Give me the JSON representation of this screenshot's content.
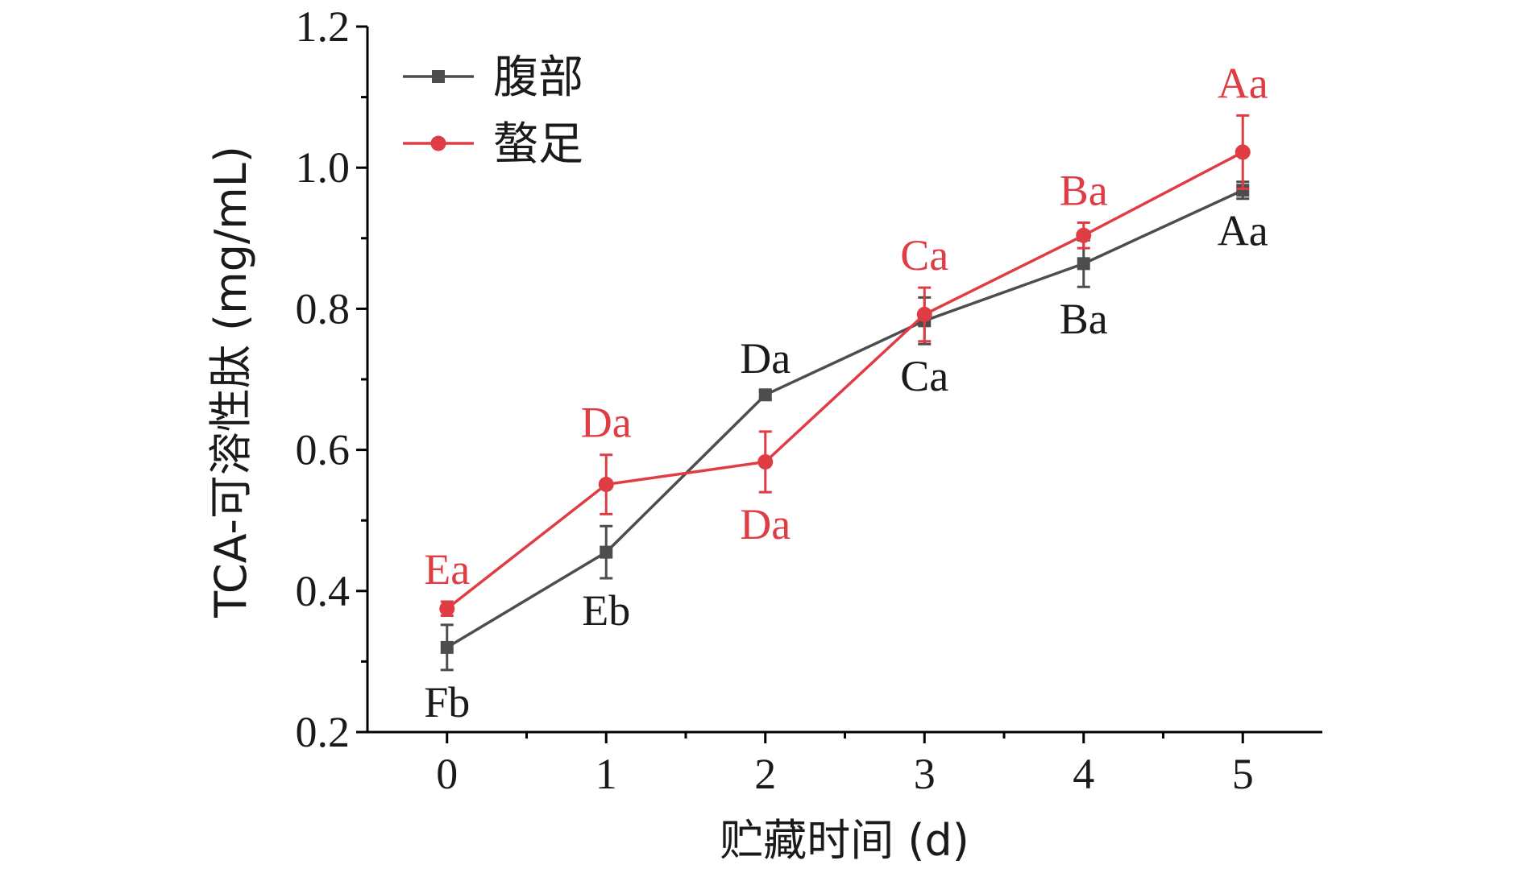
{
  "chart_data": {
    "type": "line",
    "xlabel": "贮藏时间 (d)",
    "ylabel": "TCA-可溶性肽 (mg/mL)",
    "x": [
      0,
      1,
      2,
      3,
      4,
      5
    ],
    "xlim": [
      -0.5,
      5.5
    ],
    "ylim": [
      0.2,
      1.2
    ],
    "x_ticks": [
      "0",
      "1",
      "2",
      "3",
      "4",
      "5"
    ],
    "y_ticks": [
      "0.2",
      "0.4",
      "0.6",
      "0.8",
      "1.0",
      "1.2"
    ],
    "grid": false,
    "legend_position": "top-left",
    "series": [
      {
        "name": "腹部",
        "color": "#4d4d4d",
        "marker": "square",
        "values": [
          0.32,
          0.455,
          0.678,
          0.783,
          0.864,
          0.968
        ],
        "errors": [
          0.032,
          0.037,
          0.006,
          0.033,
          0.033,
          0.012
        ],
        "labels": [
          "Fb",
          "Eb",
          "Da",
          "Ca",
          "Ba",
          "Aa"
        ],
        "label_positions": [
          "below",
          "below",
          "above",
          "below",
          "below",
          "below"
        ]
      },
      {
        "name": "螯足",
        "color": "#e03c44",
        "marker": "circle",
        "values": [
          0.375,
          0.551,
          0.583,
          0.792,
          0.904,
          1.022
        ],
        "errors": [
          0.01,
          0.042,
          0.043,
          0.038,
          0.018,
          0.052
        ],
        "labels": [
          "Ea",
          "Da",
          "Da",
          "Ca",
          "Ba",
          "Aa"
        ],
        "label_positions": [
          "above",
          "above",
          "below",
          "above",
          "above",
          "above"
        ]
      }
    ]
  }
}
